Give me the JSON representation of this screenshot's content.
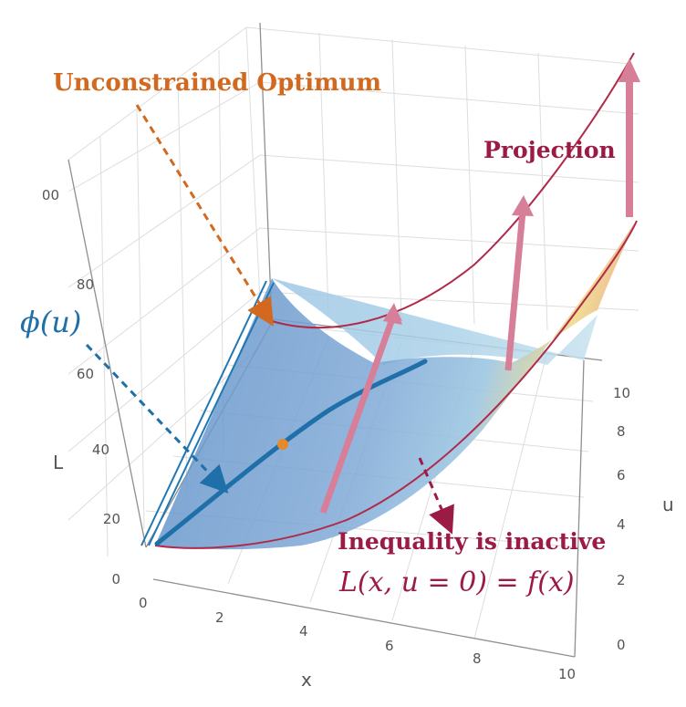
{
  "axes": {
    "x": {
      "title": "x",
      "ticks": [
        "0",
        "2",
        "4",
        "6",
        "8",
        "10"
      ]
    },
    "u": {
      "title": "u",
      "ticks": [
        "0",
        "2",
        "4",
        "6",
        "8",
        "10"
      ]
    },
    "L": {
      "title": "L",
      "ticks": [
        "0",
        "20",
        "40",
        "60",
        "80",
        "00"
      ]
    }
  },
  "annotations": {
    "unconstrained": "Unconstrained Optimum",
    "projection": "Projection",
    "phi": "ϕ(u)",
    "inactive": "Inequality is inactive",
    "formula": "L(x, u = 0) = f(x)"
  },
  "colors": {
    "orange": "#d2691e",
    "crimson": "#9b1b45",
    "blue": "#1f6fa8",
    "pink": "#d77f98",
    "surface_blue": "#6f9ccc",
    "surface_yellow": "#f0dc8c"
  }
}
